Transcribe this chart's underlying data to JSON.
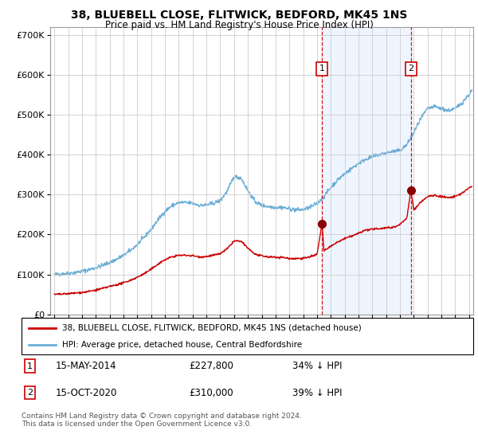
{
  "title": "38, BLUEBELL CLOSE, FLITWICK, BEDFORD, MK45 1NS",
  "subtitle": "Price paid vs. HM Land Registry's House Price Index (HPI)",
  "ylim": [
    0,
    720000
  ],
  "xlim_start": 1994.7,
  "xlim_end": 2025.3,
  "hpi_color": "#6baed6",
  "price_color": "#cc0000",
  "marker1_date": 2014.37,
  "marker1_price": 227800,
  "marker1_label": "1",
  "marker2_date": 2020.79,
  "marker2_price": 310000,
  "marker2_label": "2",
  "legend_line1": "38, BLUEBELL CLOSE, FLITWICK, BEDFORD, MK45 1NS (detached house)",
  "legend_line2": "HPI: Average price, detached house, Central Bedfordshire",
  "footer": "Contains HM Land Registry data © Crown copyright and database right 2024.\nThis data is licensed under the Open Government Licence v3.0.",
  "background_color": "#ffffff",
  "plot_bg_color": "#ffffff",
  "grid_color": "#cccccc",
  "shade_color": "#ddeeff",
  "hpi_anchors_t": [
    1995.0,
    1995.5,
    1996.0,
    1996.5,
    1997.0,
    1997.5,
    1998.0,
    1998.5,
    1999.0,
    1999.5,
    2000.0,
    2000.5,
    2001.0,
    2001.5,
    2002.0,
    2002.5,
    2003.0,
    2003.5,
    2004.0,
    2004.5,
    2005.0,
    2005.5,
    2006.0,
    2006.5,
    2007.0,
    2007.5,
    2008.0,
    2008.5,
    2009.0,
    2009.5,
    2010.0,
    2010.5,
    2011.0,
    2011.5,
    2012.0,
    2012.5,
    2013.0,
    2013.5,
    2014.0,
    2014.5,
    2015.0,
    2015.5,
    2016.0,
    2016.5,
    2017.0,
    2017.5,
    2018.0,
    2018.5,
    2019.0,
    2019.5,
    2020.0,
    2020.5,
    2021.0,
    2021.5,
    2022.0,
    2022.5,
    2023.0,
    2023.5,
    2024.0,
    2024.5,
    2025.2
  ],
  "hpi_anchors_v": [
    100000,
    101000,
    103000,
    105000,
    108000,
    112000,
    117000,
    123000,
    130000,
    138000,
    148000,
    160000,
    175000,
    193000,
    213000,
    237000,
    258000,
    272000,
    280000,
    280000,
    278000,
    273000,
    274000,
    278000,
    285000,
    308000,
    345000,
    342000,
    310000,
    283000,
    273000,
    270000,
    268000,
    268000,
    264000,
    262000,
    262000,
    268000,
    278000,
    295000,
    318000,
    337000,
    352000,
    365000,
    378000,
    388000,
    395000,
    400000,
    404000,
    408000,
    410000,
    425000,
    455000,
    490000,
    515000,
    520000,
    515000,
    510000,
    515000,
    530000,
    560000
  ],
  "price_anchors_t": [
    1995.0,
    1995.5,
    1996.0,
    1996.5,
    1997.0,
    1997.5,
    1998.0,
    1998.5,
    1999.0,
    1999.5,
    2000.0,
    2000.5,
    2001.0,
    2001.5,
    2002.0,
    2002.5,
    2003.0,
    2003.5,
    2004.0,
    2004.5,
    2005.0,
    2005.5,
    2006.0,
    2006.5,
    2007.0,
    2007.5,
    2008.0,
    2008.5,
    2009.0,
    2009.5,
    2010.0,
    2010.5,
    2011.0,
    2011.5,
    2012.0,
    2012.5,
    2013.0,
    2013.5,
    2014.0,
    2014.37,
    2014.5,
    2015.0,
    2015.5,
    2016.0,
    2016.5,
    2017.0,
    2017.5,
    2018.0,
    2018.5,
    2019.0,
    2019.5,
    2020.0,
    2020.5,
    2020.79,
    2021.0,
    2021.5,
    2022.0,
    2022.5,
    2023.0,
    2023.5,
    2024.0,
    2024.5,
    2025.2
  ],
  "price_anchors_v": [
    50000,
    50500,
    52000,
    53500,
    55000,
    57500,
    61000,
    65000,
    70000,
    74000,
    79000,
    85500,
    93000,
    102000,
    113000,
    126000,
    137000,
    144000,
    148000,
    148000,
    147000,
    144000,
    145000,
    148000,
    152000,
    164000,
    184000,
    183000,
    166000,
    151000,
    146000,
    144000,
    143000,
    143000,
    140000,
    140000,
    141000,
    144000,
    150000,
    227800,
    158000,
    171000,
    181000,
    190000,
    196000,
    203000,
    211000,
    213000,
    215000,
    217000,
    218000,
    225000,
    242000,
    310000,
    261000,
    281000,
    295000,
    298000,
    295000,
    292000,
    295000,
    304000,
    321000
  ]
}
